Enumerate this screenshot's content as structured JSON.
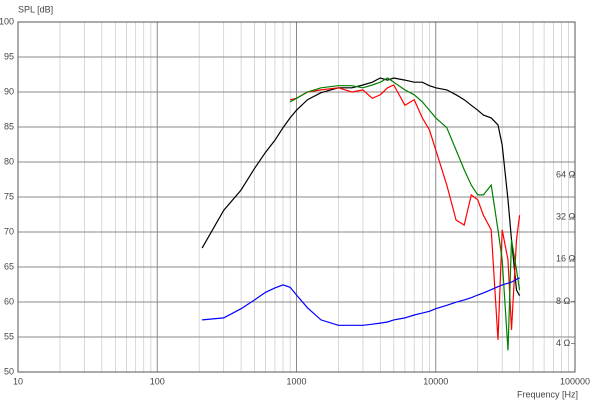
{
  "chart_data": {
    "type": "line",
    "ylabel": "SPL [dB]",
    "xlabel": "Frequency [Hz]",
    "xscale": "log",
    "y2scale": "log",
    "grid": true,
    "xlim": [
      10,
      100000
    ],
    "xticks": [
      10,
      100,
      1000,
      10000,
      100000
    ],
    "xminorticks": [
      20,
      30,
      40,
      50,
      60,
      70,
      80,
      90,
      200,
      300,
      400,
      500,
      600,
      700,
      800,
      900,
      2000,
      3000,
      4000,
      5000,
      6000,
      7000,
      8000,
      9000,
      20000,
      30000,
      40000,
      50000,
      60000,
      70000,
      80000,
      90000
    ],
    "ylim": [
      50,
      100
    ],
    "yticks": [
      50,
      55,
      60,
      65,
      70,
      75,
      80,
      85,
      90,
      95,
      100
    ],
    "y2lim": [
      2.5,
      800
    ],
    "y2ticks": [
      {
        "value": 4,
        "label": "4 Ω"
      },
      {
        "value": 8,
        "label": "8 Ω"
      },
      {
        "value": 16,
        "label": "16 Ω"
      },
      {
        "value": 32,
        "label": "32 Ω"
      },
      {
        "value": 64,
        "label": "64 Ω"
      }
    ],
    "x": [
      210,
      300,
      400,
      500,
      600,
      700,
      800,
      900,
      1000,
      1200,
      1500,
      2000,
      2500,
      3000,
      3500,
      4000,
      4500,
      5000,
      6000,
      7000,
      8000,
      9000,
      10000,
      12000,
      14000,
      16000,
      18000,
      20000,
      22000,
      25000,
      28000,
      30000,
      33000,
      35000,
      38000,
      40000
    ],
    "series": [
      {
        "color": "#000000",
        "values": [
          67.7,
          73.1,
          76,
          79.1,
          81.4,
          83.1,
          84.9,
          86.3,
          87.4,
          88.9,
          89.9,
          90.6,
          90.6,
          91,
          91.4,
          92,
          91.7,
          92,
          91.7,
          91.4,
          91.4,
          90.9,
          90.6,
          90.3,
          89.6,
          88.9,
          88.1,
          87.4,
          86.7,
          86.3,
          85.3,
          82.4,
          74.6,
          68.9,
          61.7,
          60.9
        ]
      },
      {
        "color": "#ff0000",
        "values": [
          null,
          null,
          null,
          null,
          null,
          null,
          null,
          88.9,
          89.1,
          90,
          90.3,
          90.6,
          90,
          90.3,
          89.1,
          89.6,
          90.6,
          91,
          88.1,
          88.9,
          86.3,
          84.6,
          81.7,
          76.7,
          71.7,
          71,
          75.3,
          74.6,
          72.4,
          70.3,
          54.6,
          70.3,
          66,
          56,
          68.9,
          72.4
        ]
      },
      {
        "color": "#008000",
        "values": [
          null,
          null,
          null,
          null,
          null,
          null,
          null,
          88.6,
          89.1,
          90,
          90.6,
          90.9,
          90.9,
          90.6,
          91,
          91.4,
          92,
          91.4,
          90.3,
          89.6,
          88.6,
          87.4,
          86.3,
          84.9,
          81.7,
          78.9,
          76.7,
          75.3,
          75.3,
          76.7,
          70.3,
          66,
          53.1,
          68.9,
          64.6,
          61.7
        ]
      },
      {
        "color": "#0000ff",
        "axis": "y2",
        "values": [
          5.9,
          6.1,
          7.1,
          8.2,
          9.3,
          10,
          10.5,
          10.1,
          8.9,
          7.2,
          5.9,
          5.4,
          5.4,
          5.4,
          5.5,
          5.6,
          5.7,
          5.9,
          6.1,
          6.4,
          6.6,
          6.8,
          7.1,
          7.5,
          7.9,
          8.2,
          8.5,
          8.9,
          9.2,
          9.7,
          10.2,
          10.5,
          10.8,
          11,
          11.5,
          11.8
        ]
      }
    ]
  }
}
